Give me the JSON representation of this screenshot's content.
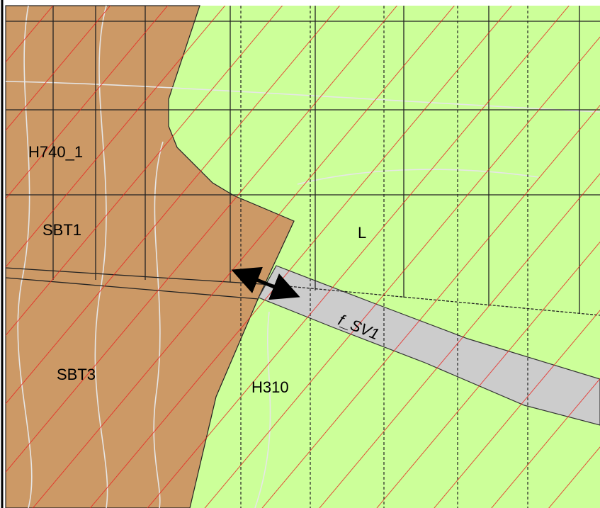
{
  "map": {
    "labels": [
      "H740_1",
      "SBT1",
      "SBT3",
      "H310",
      "L",
      "f_SV1"
    ]
  }
}
